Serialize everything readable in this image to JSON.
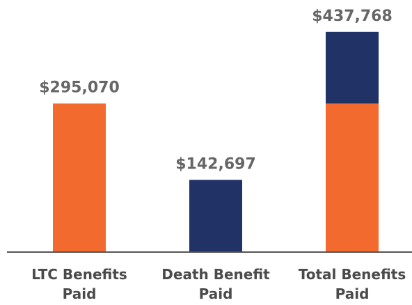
{
  "chart_data": {
    "type": "stacked_bar",
    "categories": [
      "LTC Benefits Paid",
      "Death Benefit Paid",
      "Total Benefits Paid"
    ],
    "series": [
      {
        "color": "#f26a2e",
        "values": [
          295070,
          null,
          295070
        ]
      },
      {
        "color": "#203266",
        "values": [
          null,
          142697,
          142697
        ]
      }
    ],
    "totals": [
      295070,
      142697,
      437768
    ],
    "value_labels": [
      "$295,070",
      "$142,697",
      "$437,768"
    ],
    "ylim": [
      0,
      450000
    ]
  }
}
